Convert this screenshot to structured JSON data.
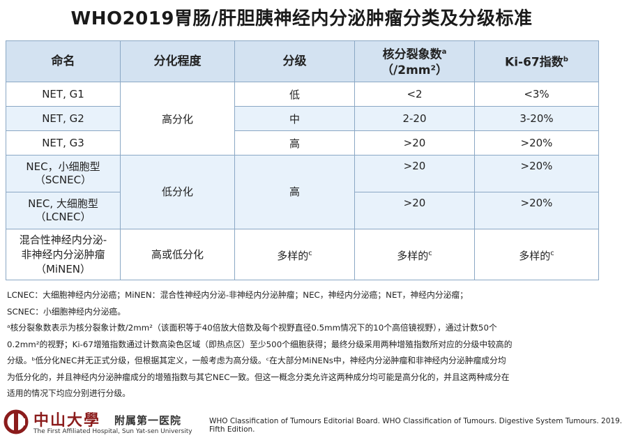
{
  "title": "WHO2019胃肠/肝胆胰神经内分泌肿瘤分类及分级标准",
  "table": {
    "headers": {
      "name": "命名",
      "diff": "分化程度",
      "grade": "分级",
      "mitotic": "核分裂象数",
      "mitotic_sup": "a",
      "mitotic_unit": "（/2mm²）",
      "ki67": "Ki-67指数",
      "ki67_sup": "b"
    },
    "well_diff": "高分化",
    "poor_diff": "低分化",
    "poor_grade": "高",
    "rows": [
      {
        "name": "NET, G1",
        "grade": "低",
        "mitotic": "<2",
        "ki67": "<3%"
      },
      {
        "name": "NET, G2",
        "grade": "中",
        "mitotic": "2-20",
        "ki67": "3-20%"
      },
      {
        "name": "NET, G3",
        "grade": "高",
        "mitotic": ">20",
        "ki67": ">20%"
      },
      {
        "name_l1": "NEC，小细胞型",
        "name_l2": "（SCNEC）",
        "mitotic": ">20",
        "ki67": ">20%"
      },
      {
        "name_l1": "NEC, 大细胞型",
        "name_l2": "（LCNEC）",
        "mitotic": ">20",
        "ki67": ">20%"
      }
    ],
    "mixed": {
      "name_l1": "混合性神经内分泌-",
      "name_l2": "非神经内分泌肿瘤",
      "name_l3": "（MiNEN）",
      "diff": "高或低分化",
      "value": "多样的",
      "sup": "c"
    }
  },
  "notes": [
    "LCNEC：大细胞神经内分泌癌；MiNEN：混合性神经内分泌-非神经内分泌肿瘤；NEC，神经内分泌癌；NET，神经内分泌瘤；",
    "SCNEC：小细胞神经内分泌癌。",
    "ᵃ核分裂象数表示为核分裂象计数/2mm²（该面积等于40倍放大倍数及每个视野直径0.5mm情况下的10个高倍镜视野），通过计数50个",
    "0.2mm²的视野；Ki-67增殖指数通过计数高染色区域（即热点区）至少500个细胞获得；最终分级采用两种增殖指数所对应的分级中较高的",
    "分级。ᵇ低分化NEC并无正式分级，但根据其定义，一般考虑为高分级。ᶜ在大部分MiNENs中，神经内分泌肿瘤和非神经内分泌肿瘤成分均",
    "为低分化的，并且神经内分泌肿瘤成分的增殖指数与其它NEC一致。但这一概念分类允许这两种成分均可能是高分化的，并且这两种成分在",
    "适用的情况下均应分别进行分级。"
  ],
  "logo": {
    "cn": "中山大學",
    "cn2": "附属第一医院",
    "en": "The First Affiliated Hospital, Sun Yat-sen University"
  },
  "citation": {
    "line1": "WHO Classification of Tumours Editorial Board. WHO Classification of Tumours. Digestive System Tumours. 2019.",
    "line2": "Fifth Edition."
  },
  "colors": {
    "header_bg": "#d3e2f1",
    "row_blue": "#e8f2fb",
    "border": "#8aa7c4",
    "logo_red": "#8b1c1c"
  }
}
